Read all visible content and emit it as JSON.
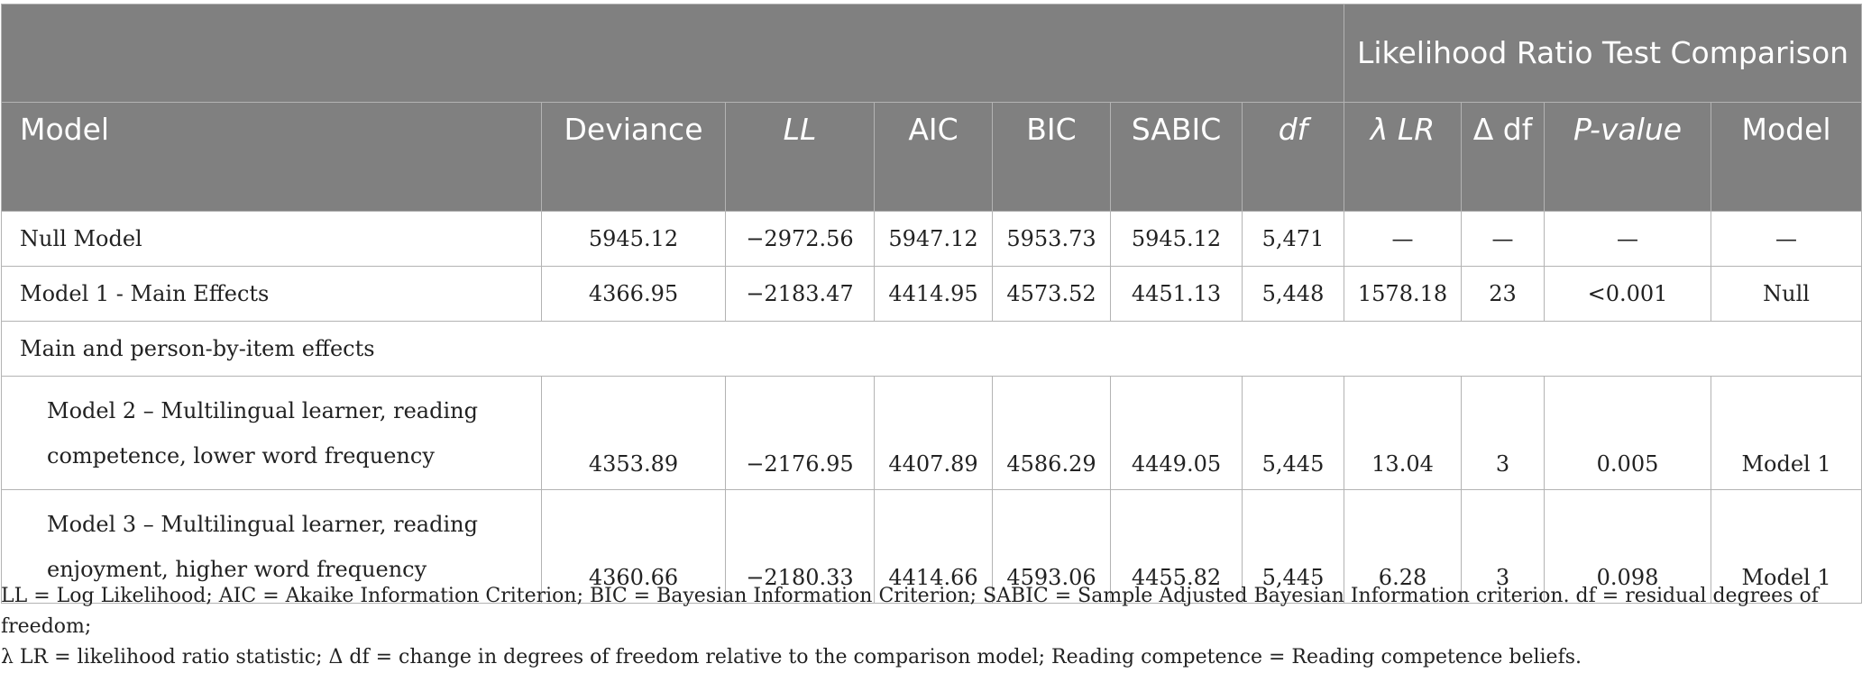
{
  "header": {
    "group_label": "Likelihood Ratio Test Comparison",
    "columns": [
      "Model",
      "Deviance",
      "LL",
      "AIC",
      "BIC",
      "SABIC",
      "df",
      "λ LR",
      "Δ df",
      "P-value",
      "Model"
    ]
  },
  "rows": [
    {
      "model": "Null Model",
      "deviance": "5945.12",
      "ll": "−2972.56",
      "aic": "5947.12",
      "bic": "5953.73",
      "sabic": "5945.12",
      "df": "5,471",
      "lr": "—",
      "ddf": "—",
      "p": "—",
      "comparison": "—"
    },
    {
      "model": "Model 1 - Main Effects",
      "deviance": "4366.95",
      "ll": "−2183.47",
      "aic": "4414.95",
      "bic": "4573.52",
      "sabic": "4451.13",
      "df": "5,448",
      "lr": "1578.18",
      "ddf": "23",
      "p": "<0.001",
      "comparison": "Null"
    },
    {
      "section": "Main and person-by-item effects"
    },
    {
      "model": "Model 2 – Multilingual learner, reading competence, lower word frequency",
      "deviance": "4353.89",
      "ll": "−2176.95",
      "aic": "4407.89",
      "bic": "4586.29",
      "sabic": "4449.05",
      "df": "5,445",
      "lr": "13.04",
      "ddf": "3",
      "p": "0.005",
      "comparison": "Model 1"
    },
    {
      "model": "Model 3 – Multilingual learner, reading enjoyment, higher word frequency",
      "deviance": "4360.66",
      "ll": "−2180.33",
      "aic": "4414.66",
      "bic": "4593.06",
      "sabic": "4455.82",
      "df": "5,445",
      "lr": "6.28",
      "ddf": "3",
      "p": "0.098",
      "comparison": "Model 1"
    }
  ],
  "footnote": "LL = Log Likelihood; AIC = Akaike Information Criterion; BIC = Bayesian Information Criterion; SABIC = Sample Adjusted Bayesian Information criterion. df = residual degrees of freedom;\nλ LR = likelihood ratio statistic; Δ df = change in degrees of freedom relative to the comparison model; Reading competence = Reading competence beliefs."
}
